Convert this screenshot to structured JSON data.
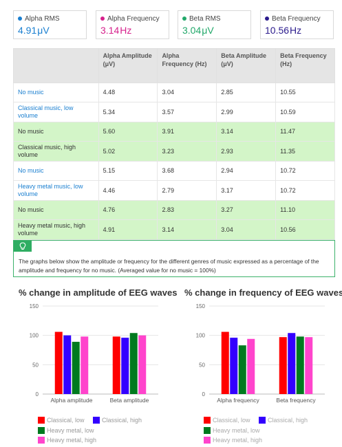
{
  "readouts": [
    {
      "label": "Alpha RMS",
      "value": "4.91",
      "unit": "μV",
      "color": "#1a7fd0",
      "dot": "#1a7fd0"
    },
    {
      "label": "Alpha Frequency",
      "value": "3.14",
      "unit": "Hz",
      "color": "#d6218c",
      "dot": "#d6218c"
    },
    {
      "label": "Beta RMS",
      "value": "3.04",
      "unit": "μV",
      "color": "#22a86a",
      "dot": "#22a86a"
    },
    {
      "label": "Beta Frequency",
      "value": "10.56",
      "unit": "Hz",
      "color": "#2a1a8c",
      "dot": "#2a1a8c"
    }
  ],
  "table": {
    "headers": [
      "",
      "Alpha Amplitude (μV)",
      "Alpha Frequency (Hz)",
      "Beta Amplitude (μV)",
      "Beta Frequency (Hz)"
    ],
    "rows": [
      {
        "condition": "No music",
        "style": "link",
        "bg": "white",
        "values": [
          "4.48",
          "3.04",
          "2.85",
          "10.55"
        ]
      },
      {
        "condition": "Classical music, low volume",
        "style": "link",
        "bg": "white",
        "values": [
          "5.34",
          "3.57",
          "2.99",
          "10.59"
        ]
      },
      {
        "condition": "No music",
        "style": "plain",
        "bg": "green",
        "values": [
          "5.60",
          "3.91",
          "3.14",
          "11.47"
        ]
      },
      {
        "condition": "Classical music, high volume",
        "style": "plain",
        "bg": "green",
        "values": [
          "5.02",
          "3.23",
          "2.93",
          "11.35"
        ]
      },
      {
        "condition": "No music",
        "style": "link",
        "bg": "white",
        "values": [
          "5.15",
          "3.68",
          "2.94",
          "10.72"
        ]
      },
      {
        "condition": "Heavy metal music, low volume",
        "style": "link",
        "bg": "white",
        "values": [
          "4.46",
          "2.79",
          "3.17",
          "10.72"
        ]
      },
      {
        "condition": "No music",
        "style": "plain",
        "bg": "green",
        "values": [
          "4.76",
          "2.83",
          "3.27",
          "11.10"
        ]
      },
      {
        "condition": "Heavy metal music, high volume",
        "style": "plain",
        "bg": "green",
        "values": [
          "4.91",
          "3.14",
          "3.04",
          "10.56"
        ]
      }
    ]
  },
  "info": {
    "icon": "lightbulb-icon",
    "text": "The graphs below show the amplitude or frequency for the different genres of music expressed as a percentage of the amplitude and frequency for no music. (Averaged value for no music = 100%)"
  },
  "chart_data": [
    {
      "type": "bar",
      "title": "% change in amplitude of EEG waves",
      "categories": [
        "Alpha amplitude",
        "Beta amplitude"
      ],
      "ylim": [
        0,
        150
      ],
      "yticks": [
        0,
        50,
        100,
        150
      ],
      "grid": true,
      "legend": "bottom",
      "series": [
        {
          "name": "Classical, low",
          "color": "#ff0000",
          "values": [
            106,
            98
          ]
        },
        {
          "name": "Classical, high",
          "color": "#3300ff",
          "values": [
            100,
            96
          ]
        },
        {
          "name": "Heavy metal, low",
          "color": "#007a1f",
          "values": [
            89,
            104
          ]
        },
        {
          "name": "Heavy metal, high",
          "color": "#ff44cc",
          "values": [
            98,
            100
          ]
        }
      ]
    },
    {
      "type": "bar",
      "title": "% change in frequency of EEG waves",
      "categories": [
        "Alpha frequency",
        "Beta frequency"
      ],
      "ylim": [
        0,
        150
      ],
      "yticks": [
        0,
        50,
        100,
        150
      ],
      "grid": true,
      "legend": "bottom",
      "series": [
        {
          "name": "Classical, low",
          "color": "#ff0000",
          "values": [
            106,
            97
          ]
        },
        {
          "name": "Classical, high",
          "color": "#3300ff",
          "values": [
            96,
            104
          ]
        },
        {
          "name": "Heavy metal, low",
          "color": "#007a1f",
          "values": [
            83,
            98
          ]
        },
        {
          "name": "Heavy metal, high",
          "color": "#ff44cc",
          "values": [
            94,
            97
          ]
        }
      ]
    }
  ]
}
